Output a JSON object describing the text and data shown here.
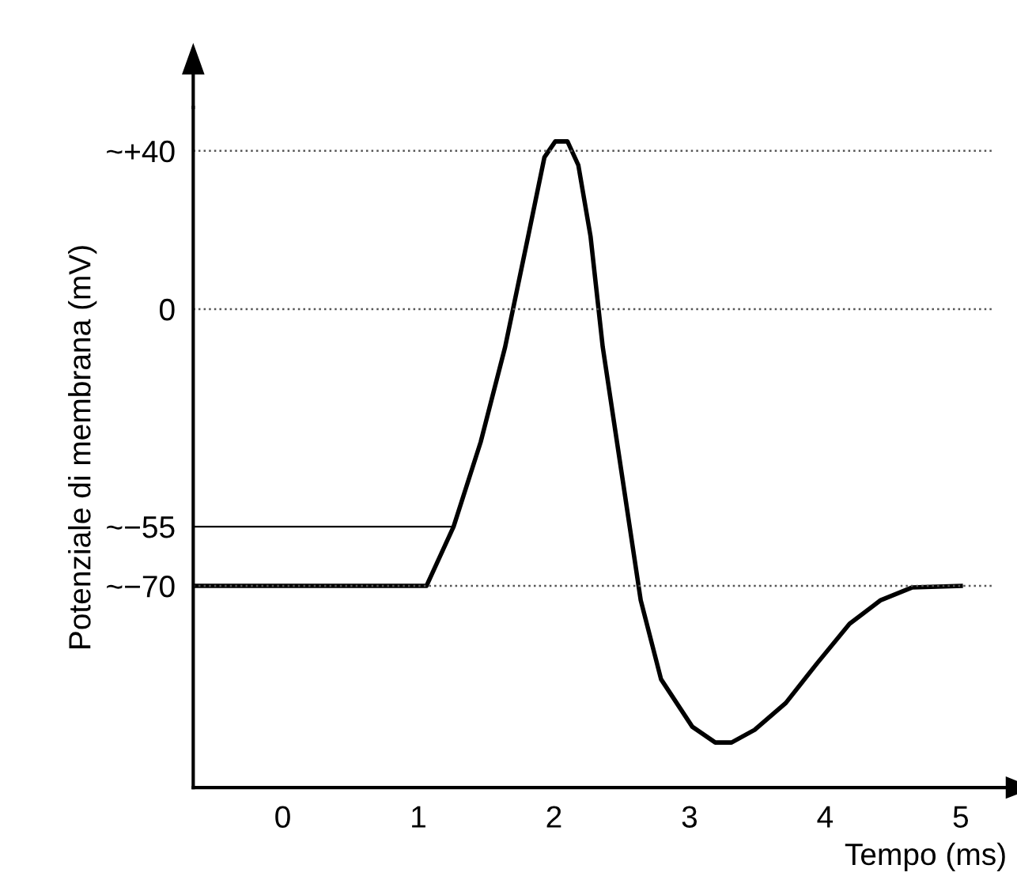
{
  "chart_data": {
    "type": "line",
    "xlabel": "Tempo (ms)",
    "ylabel": "Potenziale di membrana (mV)",
    "x": [
      -0.66,
      1.06,
      1.26,
      1.46,
      1.64,
      1.81,
      1.93,
      2.01,
      2.1,
      2.18,
      2.27,
      2.36,
      2.5,
      2.64,
      2.79,
      3.02,
      3.19,
      3.31,
      3.48,
      3.71,
      3.94,
      4.18,
      4.41,
      4.64,
      5.0
    ],
    "series": [
      {
        "color": "#000000",
        "values": [
          -70,
          -70,
          -55,
          -33.6,
          -9.6,
          18.4,
          38.4,
          42.4,
          42.4,
          36.4,
          18.4,
          -9.6,
          -41.6,
          -73.6,
          -93.6,
          -105.6,
          -109.6,
          -109.6,
          -106.4,
          -99.6,
          -89.6,
          -79.6,
          -73.6,
          -70.4,
          -70
        ]
      }
    ],
    "xlim": [
      -0.66,
      5.34
    ],
    "ylim": [
      -121,
      51
    ],
    "xticks": [
      0,
      1,
      2,
      3,
      4,
      5
    ],
    "yticks": [
      {
        "value": 40,
        "label": "~+40"
      },
      0,
      {
        "value": -55,
        "label": "~−55"
      },
      {
        "value": -70,
        "label": "~−70"
      }
    ],
    "ref_lines": [
      {
        "axis": "y",
        "value": 40,
        "line_style": "dotted"
      },
      {
        "axis": "y",
        "value": 0,
        "line_style": "dotted"
      },
      {
        "axis": "y",
        "value": -70,
        "line_style": "dotted"
      },
      {
        "axis": "y",
        "value": -55,
        "line_style": "solid"
      }
    ],
    "grid": false,
    "marker": "none",
    "line_style": "solid"
  }
}
